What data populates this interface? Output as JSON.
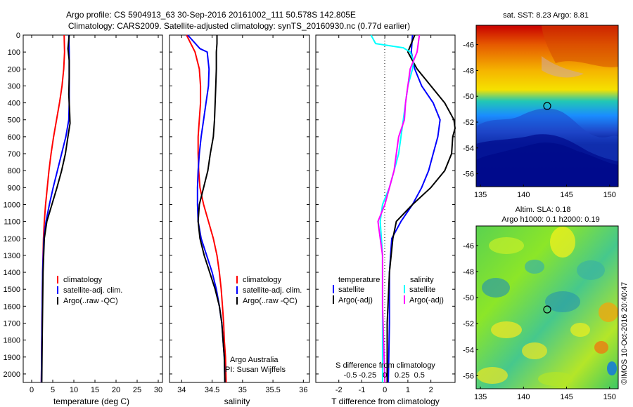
{
  "header": {
    "line1": "Argo profile: CS 5904913_63 30-Sep-2016 20161002_111 50.578S 142.805E",
    "line2": "Climatology: CARS2009. Satellite-adjusted climatology: synTS_20160930.nc (0.77d earlier)"
  },
  "colors": {
    "climatology": "#ff0000",
    "satellite": "#0000ff",
    "argo": "#000000",
    "sal_sat": "#00ffff",
    "sal_argo": "#ff00ff"
  },
  "chart_data": [
    {
      "id": "temperature",
      "type": "line",
      "xlabel": "temperature (deg C)",
      "ylabel": "",
      "xlim": [
        -2,
        31
      ],
      "ylim": [
        2050,
        0
      ],
      "xticks": [
        0,
        5,
        10,
        15,
        20,
        25,
        30
      ],
      "yticks": [
        0,
        100,
        200,
        300,
        400,
        500,
        600,
        700,
        800,
        900,
        1000,
        1100,
        1200,
        1300,
        1400,
        1500,
        1600,
        1700,
        1800,
        1900,
        2000
      ],
      "legend": [
        "climatology",
        "satellite-adj. clim.",
        "Argo(..raw -QC)"
      ],
      "series": [
        {
          "name": "climatology",
          "color": "#ff0000",
          "points": [
            [
              7.7,
              0
            ],
            [
              7.8,
              100
            ],
            [
              7.6,
              200
            ],
            [
              7.2,
              300
            ],
            [
              6.6,
              400
            ],
            [
              5.9,
              500
            ],
            [
              5.2,
              600
            ],
            [
              4.6,
              700
            ],
            [
              4.1,
              800
            ],
            [
              3.7,
              900
            ],
            [
              3.3,
              1000
            ],
            [
              3.0,
              1100
            ],
            [
              2.8,
              1200
            ],
            [
              2.6,
              1400
            ],
            [
              2.5,
              1600
            ],
            [
              2.4,
              1800
            ],
            [
              2.3,
              2050
            ]
          ]
        },
        {
          "name": "satellite-adj. clim.",
          "color": "#0000ff",
          "points": [
            [
              8.8,
              0
            ],
            [
              8.9,
              100
            ],
            [
              8.9,
              200
            ],
            [
              8.9,
              300
            ],
            [
              8.9,
              400
            ],
            [
              8.8,
              500
            ],
            [
              8.1,
              600
            ],
            [
              7.1,
              700
            ],
            [
              6.1,
              800
            ],
            [
              5.1,
              900
            ],
            [
              4.2,
              1000
            ],
            [
              3.4,
              1100
            ],
            [
              2.9,
              1200
            ],
            [
              2.6,
              1400
            ],
            [
              2.5,
              1600
            ],
            [
              2.4,
              1800
            ],
            [
              2.3,
              2050
            ]
          ]
        },
        {
          "name": "Argo(..raw -QC)",
          "color": "#000000",
          "points": [
            [
              8.9,
              0
            ],
            [
              8.6,
              80
            ],
            [
              8.9,
              150
            ],
            [
              8.9,
              250
            ],
            [
              8.8,
              350
            ],
            [
              9.0,
              450
            ],
            [
              9.1,
              520
            ],
            [
              8.6,
              600
            ],
            [
              8.0,
              700
            ],
            [
              7.1,
              800
            ],
            [
              6.0,
              900
            ],
            [
              4.8,
              1000
            ],
            [
              3.6,
              1100
            ],
            [
              3.0,
              1200
            ],
            [
              2.7,
              1400
            ],
            [
              2.6,
              1600
            ],
            [
              2.5,
              1800
            ],
            [
              2.4,
              2050
            ]
          ]
        }
      ]
    },
    {
      "id": "salinity",
      "type": "line",
      "xlabel": "salinity",
      "ylabel": "",
      "xlim": [
        33.8,
        36.1
      ],
      "ylim": [
        2050,
        0
      ],
      "xticks": [
        34,
        34.5,
        35,
        35.5,
        36
      ],
      "legend": [
        "climatology",
        "satellite-adj. clim.",
        "Argo(..raw -QC)"
      ],
      "annotation": [
        "Argo Australia",
        "PI: Susan Wijffels"
      ],
      "series": [
        {
          "name": "climatology",
          "color": "#ff0000",
          "points": [
            [
              34.08,
              0
            ],
            [
              34.22,
              100
            ],
            [
              34.29,
              200
            ],
            [
              34.31,
              300
            ],
            [
              34.31,
              400
            ],
            [
              34.29,
              500
            ],
            [
              34.27,
              600
            ],
            [
              34.27,
              700
            ],
            [
              34.28,
              800
            ],
            [
              34.3,
              900
            ],
            [
              34.36,
              1000
            ],
            [
              34.44,
              1100
            ],
            [
              34.52,
              1200
            ],
            [
              34.58,
              1300
            ],
            [
              34.62,
              1400
            ],
            [
              34.65,
              1500
            ],
            [
              34.67,
              1600
            ],
            [
              34.69,
              1700
            ],
            [
              34.7,
              1800
            ],
            [
              34.72,
              1900
            ],
            [
              34.73,
              2050
            ]
          ]
        },
        {
          "name": "satellite-adj. clim.",
          "color": "#0000ff",
          "points": [
            [
              34.1,
              0
            ],
            [
              34.3,
              80
            ],
            [
              34.42,
              100
            ],
            [
              34.45,
              200
            ],
            [
              34.44,
              300
            ],
            [
              34.4,
              400
            ],
            [
              34.36,
              500
            ],
            [
              34.32,
              600
            ],
            [
              34.29,
              700
            ],
            [
              34.27,
              800
            ],
            [
              34.26,
              900
            ],
            [
              34.26,
              1000
            ],
            [
              34.27,
              1100
            ],
            [
              34.32,
              1200
            ],
            [
              34.41,
              1300
            ],
            [
              34.5,
              1400
            ],
            [
              34.57,
              1500
            ],
            [
              34.62,
              1600
            ],
            [
              34.66,
              1700
            ],
            [
              34.68,
              1800
            ],
            [
              34.7,
              1900
            ],
            [
              34.71,
              2050
            ]
          ]
        },
        {
          "name": "Argo(..raw -QC)",
          "color": "#000000",
          "points": [
            [
              34.58,
              0
            ],
            [
              34.58,
              50
            ],
            [
              34.57,
              100
            ],
            [
              34.57,
              200
            ],
            [
              34.56,
              300
            ],
            [
              34.55,
              400
            ],
            [
              34.54,
              500
            ],
            [
              34.52,
              600
            ],
            [
              34.47,
              700
            ],
            [
              34.43,
              800
            ],
            [
              34.36,
              900
            ],
            [
              34.29,
              1000
            ],
            [
              34.27,
              1100
            ],
            [
              34.3,
              1200
            ],
            [
              34.37,
              1300
            ],
            [
              34.46,
              1400
            ],
            [
              34.55,
              1500
            ],
            [
              34.62,
              1600
            ],
            [
              34.66,
              1700
            ],
            [
              34.68,
              1800
            ],
            [
              34.7,
              1900
            ],
            [
              34.71,
              2050
            ]
          ]
        }
      ]
    },
    {
      "id": "difference",
      "type": "line",
      "xlabel": "T difference from climatology",
      "xlabel2": "S difference from climatology",
      "xlim": [
        -3,
        3.05
      ],
      "ylim": [
        2050,
        0
      ],
      "xticks": [
        -2,
        -1,
        0,
        1,
        2
      ],
      "xticks2_values": [
        -0.5,
        -0.25,
        0,
        0.25,
        0.5
      ],
      "xticks2_labels": [
        "-0.5",
        "-0.25",
        "0",
        "0.25",
        "0.5"
      ],
      "legend_temperature": [
        "temperature",
        "satellite",
        "Argo(-adj)"
      ],
      "legend_salinity": [
        "salinity",
        "satellite",
        "Argo(-adj)"
      ],
      "series": [
        {
          "name": "satellite",
          "color": "#0000ff",
          "points": [
            [
              1.2,
              0
            ],
            [
              1.15,
              100
            ],
            [
              1.3,
              200
            ],
            [
              1.6,
              300
            ],
            [
              2.1,
              400
            ],
            [
              2.4,
              500
            ],
            [
              2.3,
              600
            ],
            [
              2.1,
              700
            ],
            [
              1.9,
              800
            ],
            [
              1.6,
              900
            ],
            [
              1.2,
              1000
            ],
            [
              0.7,
              1100
            ],
            [
              0.3,
              1200
            ],
            [
              0.2,
              1400
            ],
            [
              0.2,
              1700
            ],
            [
              0.15,
              2050
            ]
          ]
        },
        {
          "name": "Argo(-adj)",
          "color": "#000000",
          "points": [
            [
              1.3,
              0
            ],
            [
              1.0,
              100
            ],
            [
              1.4,
              200
            ],
            [
              2.0,
              300
            ],
            [
              2.6,
              400
            ],
            [
              3.0,
              500
            ],
            [
              3.05,
              550
            ],
            [
              2.95,
              600
            ],
            [
              2.9,
              700
            ],
            [
              2.6,
              800
            ],
            [
              2.0,
              900
            ],
            [
              1.2,
              1000
            ],
            [
              0.5,
              1100
            ],
            [
              0.35,
              1200
            ],
            [
              0.2,
              1400
            ],
            [
              0.1,
              1700
            ],
            [
              0.1,
              2050
            ]
          ]
        },
        {
          "name": "salinity satellite",
          "color": "#00ffff",
          "points": [
            [
              -0.6,
              0
            ],
            [
              -0.4,
              50
            ],
            [
              0.8,
              75
            ],
            [
              1.1,
              100
            ],
            [
              1.25,
              150
            ],
            [
              1.2,
              200
            ],
            [
              1.0,
              300
            ],
            [
              0.9,
              400
            ],
            [
              0.8,
              500
            ],
            [
              0.7,
              600
            ],
            [
              0.6,
              700
            ],
            [
              0.4,
              800
            ],
            [
              0.2,
              900
            ],
            [
              -0.1,
              1000
            ],
            [
              -0.2,
              1100
            ],
            [
              -0.1,
              1300
            ],
            [
              -0.1,
              1600
            ],
            [
              -0.1,
              2050
            ]
          ]
        },
        {
          "name": "salinity Argo(-adj)",
          "color": "#ff00ff",
          "points": [
            [
              1.5,
              0
            ],
            [
              1.4,
              100
            ],
            [
              1.1,
              200
            ],
            [
              1.0,
              300
            ],
            [
              0.9,
              400
            ],
            [
              0.85,
              500
            ],
            [
              0.6,
              600
            ],
            [
              0.5,
              700
            ],
            [
              0.4,
              800
            ],
            [
              0.2,
              900
            ],
            [
              0.0,
              1000
            ],
            [
              -0.3,
              1100
            ],
            [
              -0.2,
              1200
            ],
            [
              -0.1,
              1300
            ],
            [
              -0.1,
              1600
            ],
            [
              0.0,
              2050
            ]
          ]
        }
      ]
    },
    {
      "id": "sst_map",
      "type": "heatmap",
      "title": "sat. SST: 8.23 Argo: 8.81",
      "xlim": [
        134.5,
        151
      ],
      "ylim": [
        -57,
        -44.5
      ],
      "xticks": [
        135,
        140,
        145,
        150
      ],
      "yticks": [
        -46,
        -48,
        -50,
        -52,
        -54,
        -56
      ],
      "marker": [
        142.805,
        -50.578
      ]
    },
    {
      "id": "sla_map",
      "type": "heatmap",
      "title": "Altim. SLA: 0.18",
      "subtitle": "Argo h1000: 0.1 h2000: 0.19",
      "xlim": [
        134.5,
        151
      ],
      "ylim": [
        -57,
        -44.5
      ],
      "xticks": [
        135,
        140,
        145,
        150
      ],
      "yticks": [
        -46,
        -48,
        -50,
        -52,
        -54,
        -56
      ],
      "marker": [
        142.805,
        -50.578
      ]
    }
  ],
  "footer": {
    "stamp": "©IMOS 10-Oct-2016 20:40:47"
  }
}
